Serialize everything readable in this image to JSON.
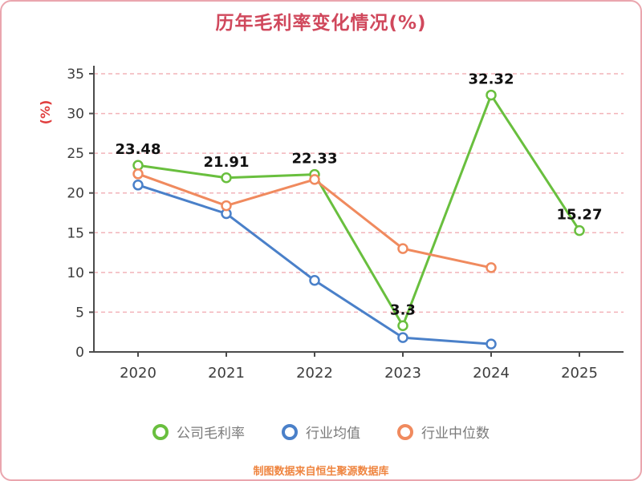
{
  "footer_note": "制图数据来自恒生聚源数据库",
  "colors": {
    "title": "#d0485c",
    "axis": "#4b4b4b",
    "grid": "#f2b3b9",
    "ylabel": "#e03e3e",
    "footer": "#ef8540",
    "border": "#eaa6ae"
  },
  "chart_data": {
    "type": "line",
    "title": "历年毛利率变化情况(%)",
    "x": [
      "2020",
      "2021",
      "2022",
      "2023",
      "2024",
      "2025"
    ],
    "ylabel": "(%)",
    "ylim": [
      0,
      35
    ],
    "yticks": [
      0,
      5,
      10,
      15,
      20,
      25,
      30,
      35
    ],
    "grid": true,
    "legend_position": "bottom",
    "series": [
      {
        "name": "公司毛利率",
        "color": "#69bf3e",
        "values": [
          23.48,
          21.91,
          22.33,
          3.3,
          32.32,
          15.27
        ],
        "point_labels": [
          "23.48",
          "21.91",
          "22.33",
          "3.3",
          "32.32",
          "15.27"
        ]
      },
      {
        "name": "行业均值",
        "color": "#4a80c9",
        "values": [
          21.0,
          17.4,
          9.0,
          1.8,
          1.0,
          null
        ],
        "point_labels": []
      },
      {
        "name": "行业中位数",
        "color": "#f08a5e",
        "values": [
          22.4,
          18.4,
          21.7,
          13.0,
          10.6,
          null
        ],
        "point_labels": []
      }
    ]
  }
}
